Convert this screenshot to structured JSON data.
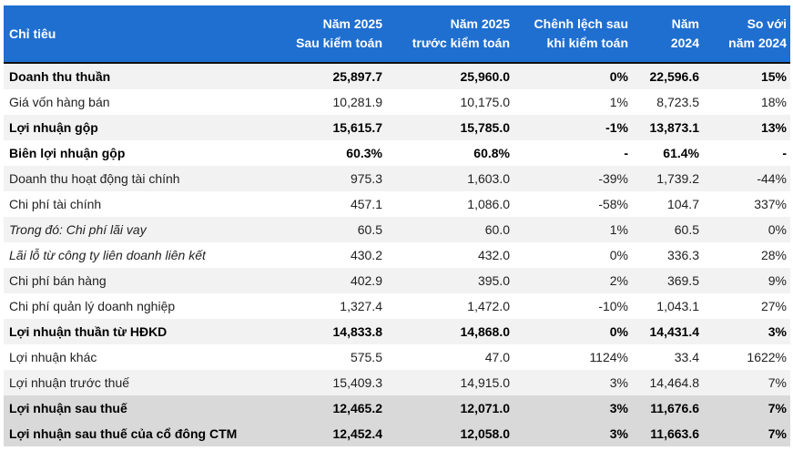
{
  "table": {
    "headers": [
      [
        "Chỉ tiêu"
      ],
      [
        "Năm 2025",
        "Sau kiểm toán"
      ],
      [
        "Năm 2025",
        "trước kiểm toán"
      ],
      [
        "Chênh lệch sau",
        "khi kiểm toán"
      ],
      [
        "Năm",
        "2024"
      ],
      [
        "So với",
        "năm 2024"
      ]
    ],
    "rows": [
      [
        "Doanh thu thuần",
        "25,897.7",
        "25,960.0",
        "0%",
        "22,596.6",
        "15%"
      ],
      [
        "Giá vốn hàng bán",
        "10,281.9",
        "10,175.0",
        "1%",
        "8,723.5",
        "18%"
      ],
      [
        "Lợi nhuận gộp",
        "15,615.7",
        "15,785.0",
        "-1%",
        "13,873.1",
        "13%"
      ],
      [
        "Biên lợi nhuận gộp",
        "60.3%",
        "60.8%",
        "-",
        "61.4%",
        "-"
      ],
      [
        "Doanh thu hoạt động tài chính",
        "975.3",
        "1,603.0",
        "-39%",
        "1,739.2",
        "-44%"
      ],
      [
        "Chi phí tài chính",
        "457.1",
        "1,086.0",
        "-58%",
        "104.7",
        "337%"
      ],
      [
        "Trong đó: Chi phí lãi vay",
        "60.5",
        "60.0",
        "1%",
        "60.5",
        "0%"
      ],
      [
        "Lãi lỗ từ công ty liên doanh liên kết",
        "430.2",
        "432.0",
        "0%",
        "336.3",
        "28%"
      ],
      [
        "Chi phí bán hàng",
        "402.9",
        "395.0",
        "2%",
        "369.5",
        "9%"
      ],
      [
        "Chi phí quản lý doanh nghiệp",
        "1,327.4",
        "1,472.0",
        "-10%",
        "1,043.1",
        "27%"
      ],
      [
        "Lợi nhuận thuần từ HĐKD",
        "14,833.8",
        "14,868.0",
        "0%",
        "14,431.4",
        "3%"
      ],
      [
        "Lợi nhuận khác",
        "575.5",
        "47.0",
        "1124%",
        "33.4",
        "1622%"
      ],
      [
        "Lợi nhuận trước thuế",
        "15,409.3",
        "14,915.0",
        "3%",
        "14,464.8",
        "7%"
      ],
      [
        "Lợi nhuận sau thuế",
        "12,465.2",
        "12,071.0",
        "3%",
        "11,676.6",
        "7%"
      ],
      [
        "Lợi nhuận sau thuế của cổ đông CTM",
        "12,452.4",
        "12,058.0",
        "3%",
        "11,663.6",
        "7%"
      ]
    ]
  }
}
